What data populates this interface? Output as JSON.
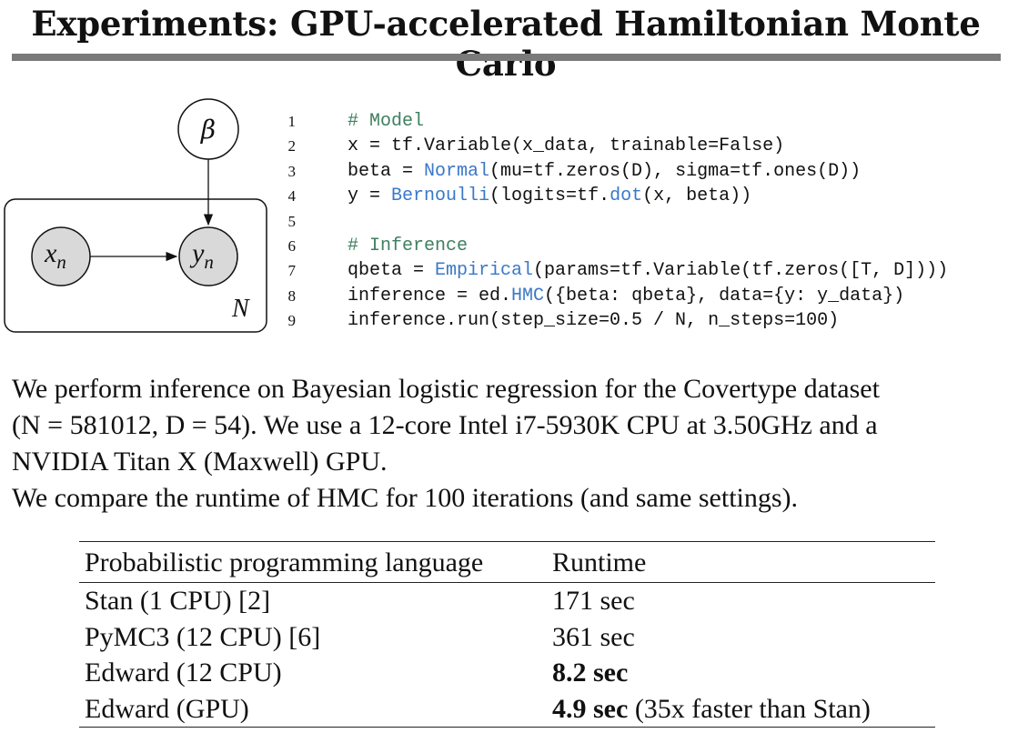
{
  "title": "Experiments: GPU-accelerated Hamiltonian Monte Carlo",
  "diagram": {
    "nodes": {
      "beta": "β",
      "x_base": "x",
      "x_sub": "n",
      "y_base": "y",
      "y_sub": "n"
    },
    "plate_label": "N",
    "colors": {
      "observed_fill": "#d9d9d9",
      "latent_fill": "#ffffff",
      "stroke": "#111111"
    }
  },
  "code": {
    "lines": [
      {
        "no": "1",
        "comment": "# Model"
      },
      {
        "no": "2",
        "pre": "x = tf.Variable(x_data, trainable=False)"
      },
      {
        "no": "3",
        "pre": "beta = ",
        "kw": "Normal",
        "post": "(mu=tf.zeros(D), sigma=tf.ones(D))"
      },
      {
        "no": "4",
        "pre": "y = ",
        "kw": "Bernoulli",
        "mid": "(logits=tf.",
        "kw2": "dot",
        "post": "(x, beta))"
      },
      {
        "no": "5",
        "pre": ""
      },
      {
        "no": "6",
        "comment": "# Inference"
      },
      {
        "no": "7",
        "pre": "qbeta = ",
        "kw": "Empirical",
        "post": "(params=tf.Variable(tf.zeros([T, D])))"
      },
      {
        "no": "8",
        "pre": "inference = ed.",
        "kw": "HMC",
        "post": "({beta: qbeta}, data={y: y_data})"
      },
      {
        "no": "9",
        "pre": "inference.run(step_size=0.5 / N, n_steps=100)"
      }
    ],
    "colors": {
      "comment": "#3f7f5f",
      "keyword": "#3a78c9"
    }
  },
  "body": {
    "line1": "We perform inference on Bayesian logistic regression for the Covertype dataset",
    "line2": "(N = 581012, D = 54). We use a 12-core Intel i7-5930K CPU at 3.50GHz and a",
    "line3": "NVIDIA Titan X (Maxwell) GPU.",
    "line4": "We compare the runtime of HMC for 100 iterations (and same settings)."
  },
  "table": {
    "headers": [
      "Probabilistic programming language",
      "Runtime"
    ],
    "rows": [
      {
        "language": "Stan (1 CPU) [2]",
        "runtime": "171 sec",
        "note": "",
        "bold": false
      },
      {
        "language": "PyMC3 (12 CPU) [6]",
        "runtime": "361 sec",
        "note": "",
        "bold": false
      },
      {
        "language": "Edward (12 CPU)",
        "runtime": "8.2 sec",
        "note": "",
        "bold": true
      },
      {
        "language": "Edward (GPU)",
        "runtime": "4.9 sec",
        "note": " (35x faster than Stan)",
        "bold": true
      }
    ]
  }
}
